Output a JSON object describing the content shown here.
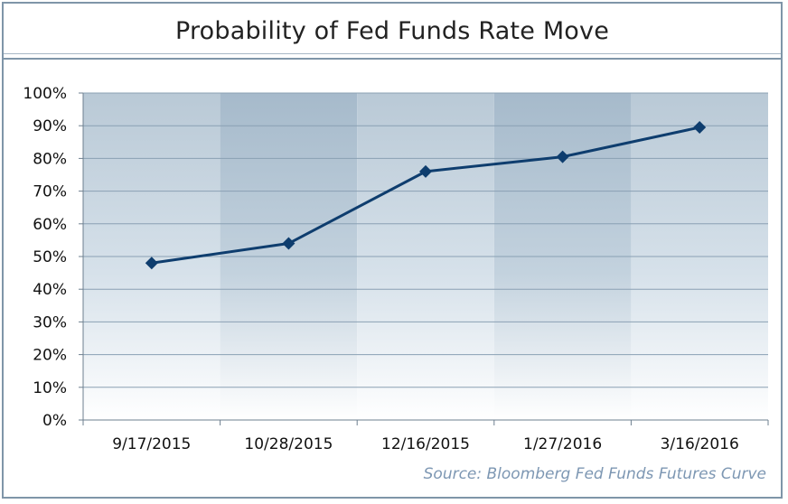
{
  "chart_data": {
    "type": "line",
    "title": "Probability of Fed Funds Rate Move",
    "categories": [
      "9/17/2015",
      "10/28/2015",
      "12/16/2015",
      "1/27/2016",
      "3/16/2016"
    ],
    "series": [
      {
        "values": [
          48,
          54,
          76,
          80.5,
          89.5
        ]
      }
    ],
    "ylim": [
      0,
      100
    ],
    "yticks": [
      "0%",
      "10%",
      "20%",
      "30%",
      "40%",
      "50%",
      "60%",
      "70%",
      "80%",
      "90%",
      "100%"
    ],
    "grid": true,
    "source": "Source: Bloomberg Fed Funds Futures Curve"
  },
  "colors": {
    "line": "#0e3d6e",
    "band_light": "#c5d3de",
    "band_dark": "#a9bccb",
    "grid": "#8aa0b3",
    "axis": "#6d7f8f"
  }
}
